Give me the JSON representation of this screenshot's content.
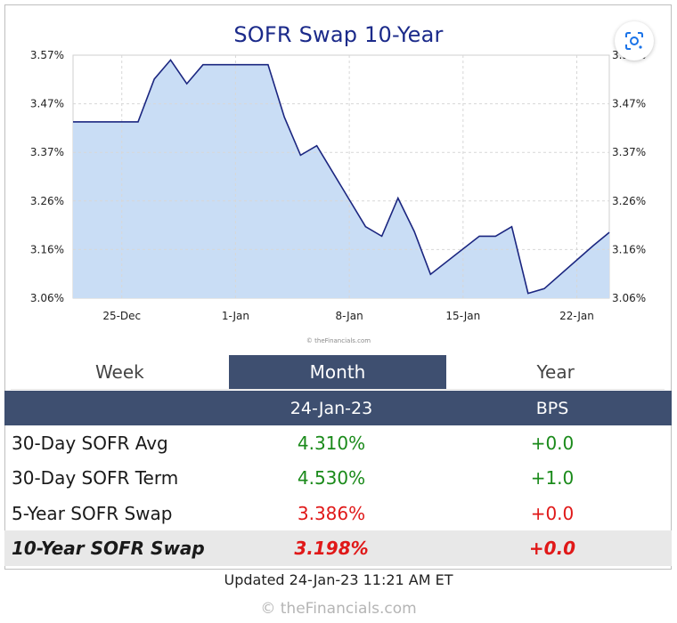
{
  "chart_data": {
    "type": "area",
    "title": "SOFR Swap 10-Year",
    "x_tick_labels": [
      "25-Dec",
      "1-Jan",
      "8-Jan",
      "15-Jan",
      "22-Jan"
    ],
    "y_tick_labels": [
      "3.57%",
      "3.47%",
      "3.37%",
      "3.26%",
      "3.16%",
      "3.06%"
    ],
    "ylim": [
      3.06,
      3.57
    ],
    "grid": true,
    "watermark": "© theFinancials.com",
    "series": [
      {
        "x": [
          "2022-12-22",
          "2022-12-23",
          "2022-12-26",
          "2022-12-27",
          "2022-12-28",
          "2022-12-29",
          "2022-12-30",
          "2023-01-02",
          "2023-01-03",
          "2023-01-04",
          "2023-01-05",
          "2023-01-06",
          "2023-01-09",
          "2023-01-10",
          "2023-01-11",
          "2023-01-12",
          "2023-01-13",
          "2023-01-16",
          "2023-01-17",
          "2023-01-18",
          "2023-01-19",
          "2023-01-20",
          "2023-01-23",
          "2023-01-24"
        ],
        "values": [
          3.43,
          3.43,
          3.43,
          3.52,
          3.56,
          3.51,
          3.55,
          3.55,
          3.55,
          3.44,
          3.36,
          3.38,
          3.21,
          3.19,
          3.27,
          3.2,
          3.11,
          3.19,
          3.19,
          3.21,
          3.07,
          3.08,
          3.17,
          3.198
        ]
      }
    ],
    "colors": {
      "line": "#1b2680",
      "fill": "#c9ddf5",
      "grid": "#d7d7d7"
    }
  },
  "lens_icon": "google-lens-icon",
  "tabs": [
    "Week",
    "Month",
    "Year"
  ],
  "active_tab": "Month",
  "table": {
    "header_date": "24-Jan-23",
    "header_bps": "BPS",
    "rows": [
      {
        "label": "30-Day SOFR Avg",
        "value": "4.310%",
        "bps": "+0.0",
        "color": "green"
      },
      {
        "label": "30-Day SOFR Term",
        "value": "4.530%",
        "bps": "+1.0",
        "color": "green"
      },
      {
        "label": "5-Year SOFR Swap",
        "value": "3.386%",
        "bps": "+0.0",
        "color": "red"
      },
      {
        "label": "10-Year SOFR Swap",
        "value": "3.198%",
        "bps": "+0.0",
        "color": "red"
      }
    ]
  },
  "updated": "Updated 24-Jan-23 11:21 AM ET",
  "copyright": "© theFinancials.com"
}
